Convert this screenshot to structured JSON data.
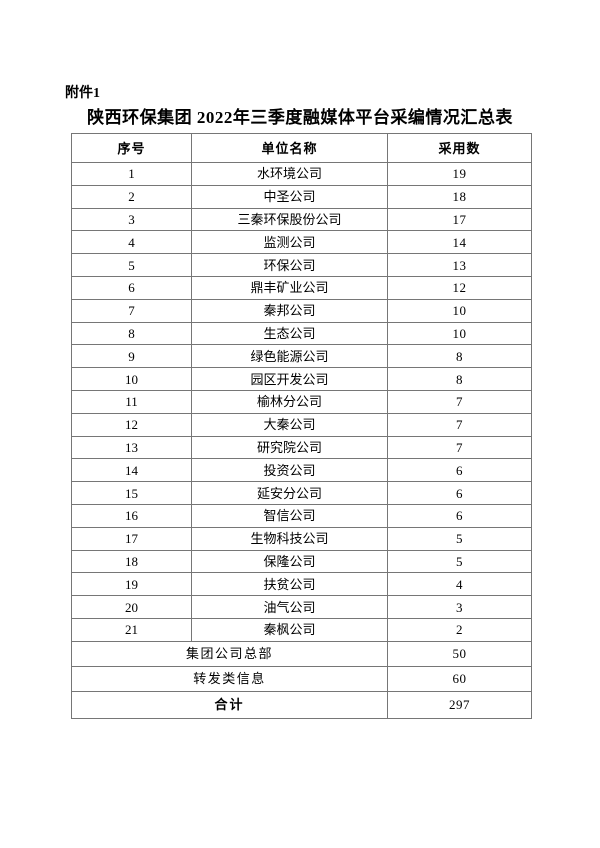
{
  "doc": {
    "attachment_label": "附件1",
    "title": "陕西环保集团 2022年三季度融媒体平台采编情况汇总表"
  },
  "table": {
    "headers": [
      "序号",
      "单位名称",
      "采用数"
    ],
    "rows": [
      {
        "no": "1",
        "name": "水环境公司",
        "count": "19"
      },
      {
        "no": "2",
        "name": "中圣公司",
        "count": "18"
      },
      {
        "no": "3",
        "name": "三秦环保股份公司",
        "count": "17"
      },
      {
        "no": "4",
        "name": "监测公司",
        "count": "14"
      },
      {
        "no": "5",
        "name": "环保公司",
        "count": "13"
      },
      {
        "no": "6",
        "name": "鼎丰矿业公司",
        "count": "12"
      },
      {
        "no": "7",
        "name": "秦邦公司",
        "count": "10"
      },
      {
        "no": "8",
        "name": "生态公司",
        "count": "10"
      },
      {
        "no": "9",
        "name": "绿色能源公司",
        "count": "8"
      },
      {
        "no": "10",
        "name": "园区开发公司",
        "count": "8"
      },
      {
        "no": "11",
        "name": "榆林分公司",
        "count": "7"
      },
      {
        "no": "12",
        "name": "大秦公司",
        "count": "7"
      },
      {
        "no": "13",
        "name": "研究院公司",
        "count": "7"
      },
      {
        "no": "14",
        "name": "投资公司",
        "count": "6"
      },
      {
        "no": "15",
        "name": "延安分公司",
        "count": "6"
      },
      {
        "no": "16",
        "name": "智信公司",
        "count": "6"
      },
      {
        "no": "17",
        "name": "生物科技公司",
        "count": "5"
      },
      {
        "no": "18",
        "name": "保隆公司",
        "count": "5"
      },
      {
        "no": "19",
        "name": "扶贫公司",
        "count": "4"
      },
      {
        "no": "20",
        "name": "油气公司",
        "count": "3"
      },
      {
        "no": "21",
        "name": "秦枫公司",
        "count": "2"
      }
    ],
    "summary_rows": [
      {
        "label": "集团公司总部",
        "count": "50"
      },
      {
        "label": "转发类信息",
        "count": "60"
      }
    ],
    "total_row": {
      "label": "合计",
      "count": "297"
    }
  },
  "colors": {
    "page_bg": "#ffffff",
    "text": "#000000",
    "table_border": "#767676"
  }
}
